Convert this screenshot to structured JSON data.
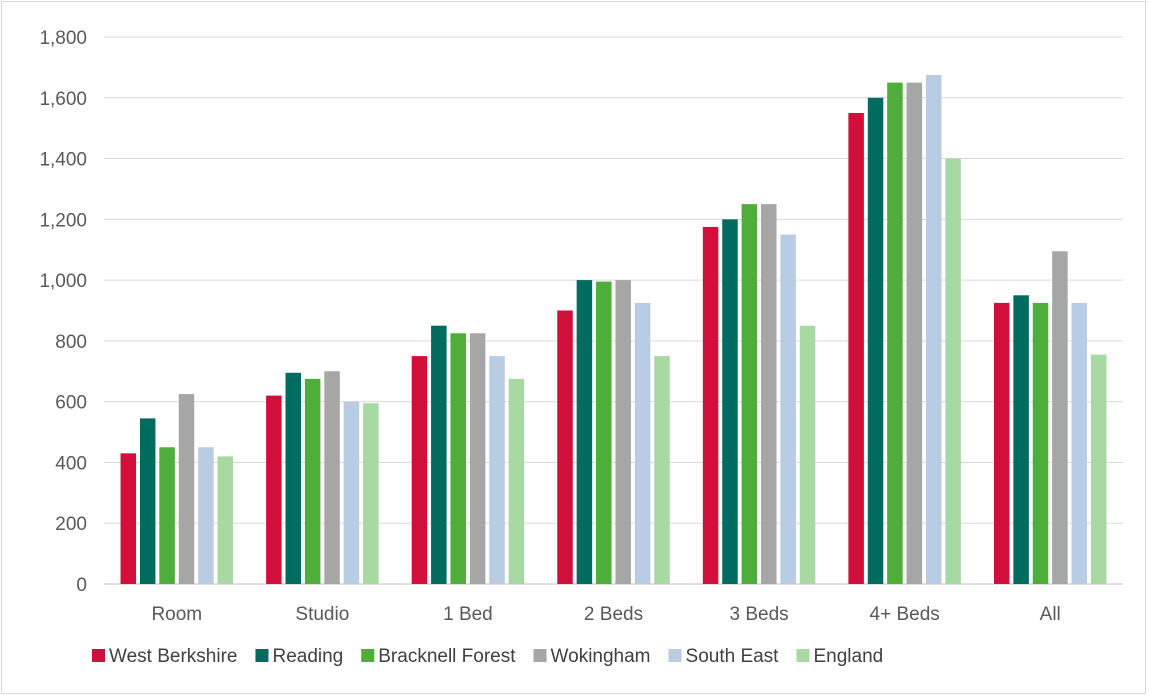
{
  "chart_data": {
    "type": "bar",
    "title": "",
    "xlabel": "",
    "ylabel": "",
    "ylim": [
      0,
      1800
    ],
    "yticks": [
      0,
      200,
      400,
      600,
      800,
      1000,
      1200,
      1400,
      1600,
      1800
    ],
    "ytick_labels": [
      "0",
      "200",
      "400",
      "600",
      "800",
      "1,000",
      "1,200",
      "1,400",
      "1,600",
      "1,800"
    ],
    "categories": [
      "Room",
      "Studio",
      "1 Bed",
      "2 Beds",
      "3 Beds",
      "4+ Beds",
      "All"
    ],
    "grid": true,
    "legend_position": "bottom",
    "series": [
      {
        "name": "West Berkshire",
        "color": "#d0103a",
        "values": [
          430,
          620,
          750,
          900,
          1175,
          1550,
          925
        ]
      },
      {
        "name": "Reading",
        "color": "#006b5f",
        "values": [
          545,
          695,
          850,
          1000,
          1200,
          1600,
          950
        ]
      },
      {
        "name": "Bracknell Forest",
        "color": "#4fad3a",
        "values": [
          450,
          675,
          825,
          995,
          1250,
          1650,
          925
        ]
      },
      {
        "name": "Wokingham",
        "color": "#a6a6a6",
        "values": [
          625,
          700,
          825,
          1000,
          1250,
          1650,
          1095
        ]
      },
      {
        "name": "South East",
        "color": "#b8cce4",
        "values": [
          450,
          600,
          750,
          925,
          1150,
          1675,
          925
        ]
      },
      {
        "name": "England",
        "color": "#a9d9a2",
        "values": [
          420,
          595,
          675,
          750,
          850,
          1400,
          755
        ]
      }
    ]
  }
}
